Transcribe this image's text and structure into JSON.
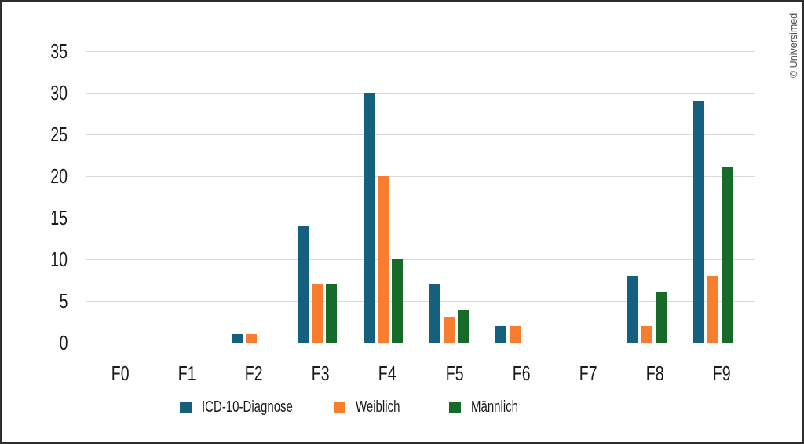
{
  "copyright": "© Universimed",
  "colors": {
    "background": "#FFFFFF",
    "border": "#2E2E2E",
    "gridline": "#D9D9D9",
    "text": "#1A1A1A",
    "copyright_text": "#4A4A4A"
  },
  "chart_data": {
    "type": "bar",
    "title": "",
    "xlabel": "",
    "ylabel": "",
    "categories": [
      "F0",
      "F1",
      "F2",
      "F3",
      "F4",
      "F5",
      "F6",
      "F7",
      "F8",
      "F9"
    ],
    "series": [
      {
        "name": "ICD-10-Diagnose",
        "color": "#15607E",
        "values": [
          0,
          0,
          1,
          14,
          30,
          7,
          2,
          0,
          8,
          29
        ]
      },
      {
        "name": "Weiblich",
        "color": "#F97D2E",
        "values": [
          0,
          0,
          1,
          7,
          20,
          3,
          2,
          0,
          2,
          8
        ]
      },
      {
        "name": "Männlich",
        "color": "#166B2B",
        "values": [
          0,
          0,
          0,
          7,
          10,
          4,
          0,
          0,
          6,
          21
        ]
      }
    ],
    "ylim": [
      0,
      35
    ],
    "yticks": [
      0,
      5,
      10,
      15,
      20,
      25,
      30,
      35
    ],
    "grid": true,
    "legend_position": "bottom"
  }
}
